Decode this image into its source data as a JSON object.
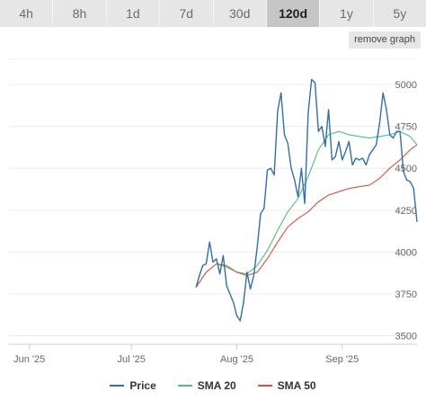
{
  "tabs": [
    {
      "label": "4h",
      "active": false
    },
    {
      "label": "8h",
      "active": false
    },
    {
      "label": "1d",
      "active": false
    },
    {
      "label": "7d",
      "active": false
    },
    {
      "label": "30d",
      "active": false
    },
    {
      "label": "120d",
      "active": true
    },
    {
      "label": "1y",
      "active": false
    },
    {
      "label": "5y",
      "active": false
    }
  ],
  "remove_graph_label": "remove graph",
  "chart_data": {
    "type": "line",
    "x_ticks": [
      "Jun '25",
      "Jul '25",
      "Aug '25",
      "Sep '25"
    ],
    "y_ticks": [
      3500,
      3750,
      4000,
      4250,
      4500,
      4750,
      5000
    ],
    "ylim": [
      3450,
      5150
    ],
    "xlim": [
      "2025-05-26",
      "2025-09-23"
    ],
    "grid": "horizontal",
    "legend_position": "bottom",
    "series": [
      {
        "name": "Price",
        "color": "#2f6fad",
        "points": [
          [
            "2025-07-20",
            3790
          ],
          [
            "2025-07-21",
            3860
          ],
          [
            "2025-07-22",
            3920
          ],
          [
            "2025-07-23",
            3930
          ],
          [
            "2025-07-24",
            4060
          ],
          [
            "2025-07-25",
            3940
          ],
          [
            "2025-07-26",
            3960
          ],
          [
            "2025-07-27",
            3870
          ],
          [
            "2025-07-28",
            3980
          ],
          [
            "2025-07-29",
            3800
          ],
          [
            "2025-07-30",
            3750
          ],
          [
            "2025-07-31",
            3700
          ],
          [
            "2025-08-01",
            3620
          ],
          [
            "2025-08-02",
            3590
          ],
          [
            "2025-08-03",
            3700
          ],
          [
            "2025-08-04",
            3880
          ],
          [
            "2025-08-05",
            3780
          ],
          [
            "2025-08-06",
            3860
          ],
          [
            "2025-08-07",
            4030
          ],
          [
            "2025-08-08",
            4230
          ],
          [
            "2025-08-09",
            4260
          ],
          [
            "2025-08-10",
            4490
          ],
          [
            "2025-08-11",
            4500
          ],
          [
            "2025-08-12",
            4460
          ],
          [
            "2025-08-13",
            4840
          ],
          [
            "2025-08-14",
            4950
          ],
          [
            "2025-08-15",
            4700
          ],
          [
            "2025-08-16",
            4650
          ],
          [
            "2025-08-17",
            4500
          ],
          [
            "2025-08-18",
            4430
          ],
          [
            "2025-08-19",
            4330
          ],
          [
            "2025-08-20",
            4500
          ],
          [
            "2025-08-21",
            4290
          ],
          [
            "2025-08-22",
            4830
          ],
          [
            "2025-08-23",
            5030
          ],
          [
            "2025-08-24",
            5010
          ],
          [
            "2025-08-25",
            4720
          ],
          [
            "2025-08-26",
            4750
          ],
          [
            "2025-08-27",
            4630
          ],
          [
            "2025-08-28",
            4850
          ],
          [
            "2025-08-29",
            4550
          ],
          [
            "2025-08-30",
            4570
          ],
          [
            "2025-08-31",
            4660
          ],
          [
            "2025-09-01",
            4550
          ],
          [
            "2025-09-02",
            4600
          ],
          [
            "2025-09-03",
            4660
          ],
          [
            "2025-09-04",
            4520
          ],
          [
            "2025-09-05",
            4560
          ],
          [
            "2025-09-06",
            4550
          ],
          [
            "2025-09-07",
            4560
          ],
          [
            "2025-09-08",
            4520
          ],
          [
            "2025-09-09",
            4580
          ],
          [
            "2025-09-10",
            4610
          ],
          [
            "2025-09-11",
            4640
          ],
          [
            "2025-09-12",
            4770
          ],
          [
            "2025-09-13",
            4950
          ],
          [
            "2025-09-14",
            4850
          ],
          [
            "2025-09-15",
            4700
          ],
          [
            "2025-09-16",
            4680
          ],
          [
            "2025-09-17",
            4720
          ],
          [
            "2025-09-18",
            4720
          ],
          [
            "2025-09-19",
            4480
          ],
          [
            "2025-09-20",
            4430
          ],
          [
            "2025-09-21",
            4420
          ],
          [
            "2025-09-22",
            4380
          ],
          [
            "2025-09-23",
            4180
          ]
        ]
      },
      {
        "name": "SMA 20",
        "color": "#4cc27a",
        "points": [
          [
            "2025-07-20",
            3790
          ],
          [
            "2025-07-23",
            3880
          ],
          [
            "2025-07-26",
            3930
          ],
          [
            "2025-07-29",
            3910
          ],
          [
            "2025-08-01",
            3880
          ],
          [
            "2025-08-04",
            3870
          ],
          [
            "2025-08-07",
            3920
          ],
          [
            "2025-08-10",
            4010
          ],
          [
            "2025-08-13",
            4130
          ],
          [
            "2025-08-16",
            4240
          ],
          [
            "2025-08-19",
            4320
          ],
          [
            "2025-08-22",
            4450
          ],
          [
            "2025-08-25",
            4610
          ],
          [
            "2025-08-28",
            4700
          ],
          [
            "2025-08-31",
            4720
          ],
          [
            "2025-09-03",
            4700
          ],
          [
            "2025-09-06",
            4690
          ],
          [
            "2025-09-09",
            4680
          ],
          [
            "2025-09-12",
            4690
          ],
          [
            "2025-09-15",
            4700
          ],
          [
            "2025-09-18",
            4720
          ],
          [
            "2025-09-21",
            4690
          ],
          [
            "2025-09-23",
            4640
          ]
        ]
      },
      {
        "name": "SMA 50",
        "color": "#d9503f",
        "points": [
          [
            "2025-07-20",
            3790
          ],
          [
            "2025-07-23",
            3880
          ],
          [
            "2025-07-26",
            3930
          ],
          [
            "2025-07-29",
            3920
          ],
          [
            "2025-08-01",
            3880
          ],
          [
            "2025-08-04",
            3860
          ],
          [
            "2025-08-07",
            3880
          ],
          [
            "2025-08-10",
            3960
          ],
          [
            "2025-08-13",
            4060
          ],
          [
            "2025-08-16",
            4150
          ],
          [
            "2025-08-19",
            4200
          ],
          [
            "2025-08-22",
            4240
          ],
          [
            "2025-08-25",
            4300
          ],
          [
            "2025-08-28",
            4340
          ],
          [
            "2025-08-31",
            4360
          ],
          [
            "2025-09-03",
            4380
          ],
          [
            "2025-09-06",
            4390
          ],
          [
            "2025-09-09",
            4400
          ],
          [
            "2025-09-12",
            4440
          ],
          [
            "2025-09-15",
            4500
          ],
          [
            "2025-09-18",
            4550
          ],
          [
            "2025-09-21",
            4610
          ],
          [
            "2025-09-23",
            4640
          ]
        ]
      }
    ]
  }
}
